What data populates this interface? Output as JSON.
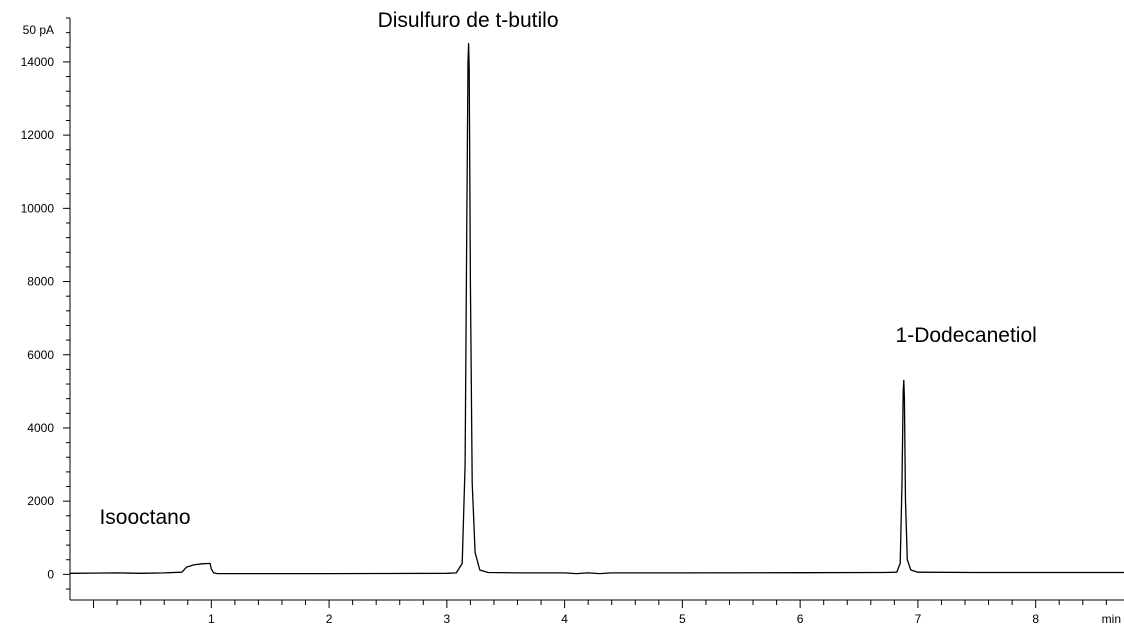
{
  "chart_data": {
    "type": "line",
    "title": "",
    "xlabel": "",
    "ylabel": "",
    "x_unit": "min",
    "y_unit": "50 pA",
    "xlim": [
      -0.2,
      8.75
    ],
    "ylim": [
      -700,
      15200
    ],
    "x_ticks": [
      1,
      2,
      3,
      4,
      5,
      6,
      7,
      8
    ],
    "x_minor_step": 0.2,
    "y_ticks": [
      0,
      2000,
      4000,
      6000,
      8000,
      10000,
      12000,
      14000
    ],
    "y_minor_step": 400,
    "grid": false,
    "series": [
      {
        "x": [
          -0.2,
          0.0,
          0.2,
          0.4,
          0.6,
          0.75,
          0.79,
          0.85,
          0.92,
          0.99,
          1.0,
          1.02,
          1.05,
          1.5,
          2.0,
          2.5,
          3.0,
          3.08,
          3.13,
          3.155,
          3.17,
          3.18,
          3.185,
          3.19,
          3.2,
          3.215,
          3.24,
          3.28,
          3.35,
          3.6,
          4.0,
          4.1,
          4.2,
          4.3,
          4.4,
          5.0,
          6.0,
          6.7,
          6.82,
          6.85,
          6.865,
          6.875,
          6.88,
          6.885,
          6.895,
          6.91,
          6.94,
          7.0,
          7.5,
          8.0,
          8.5,
          8.75
        ],
        "y": [
          30,
          35,
          40,
          30,
          40,
          60,
          200,
          260,
          290,
          300,
          150,
          40,
          20,
          20,
          20,
          25,
          30,
          40,
          300,
          3000,
          10000,
          14000,
          14500,
          13800,
          8000,
          2500,
          600,
          120,
          50,
          40,
          40,
          20,
          40,
          20,
          40,
          40,
          45,
          50,
          60,
          300,
          2500,
          5000,
          5300,
          4800,
          2000,
          400,
          120,
          60,
          50,
          50,
          50,
          50
        ]
      }
    ],
    "annotations": [
      {
        "text": "Isooctano",
        "x": 0.05,
        "y": 1380
      },
      {
        "text": "Disulfuro de t-butilo",
        "x": 3.18,
        "y": 14950
      },
      {
        "text": "1-Dodecanetiol",
        "x": 6.81,
        "y": 6350
      }
    ]
  }
}
